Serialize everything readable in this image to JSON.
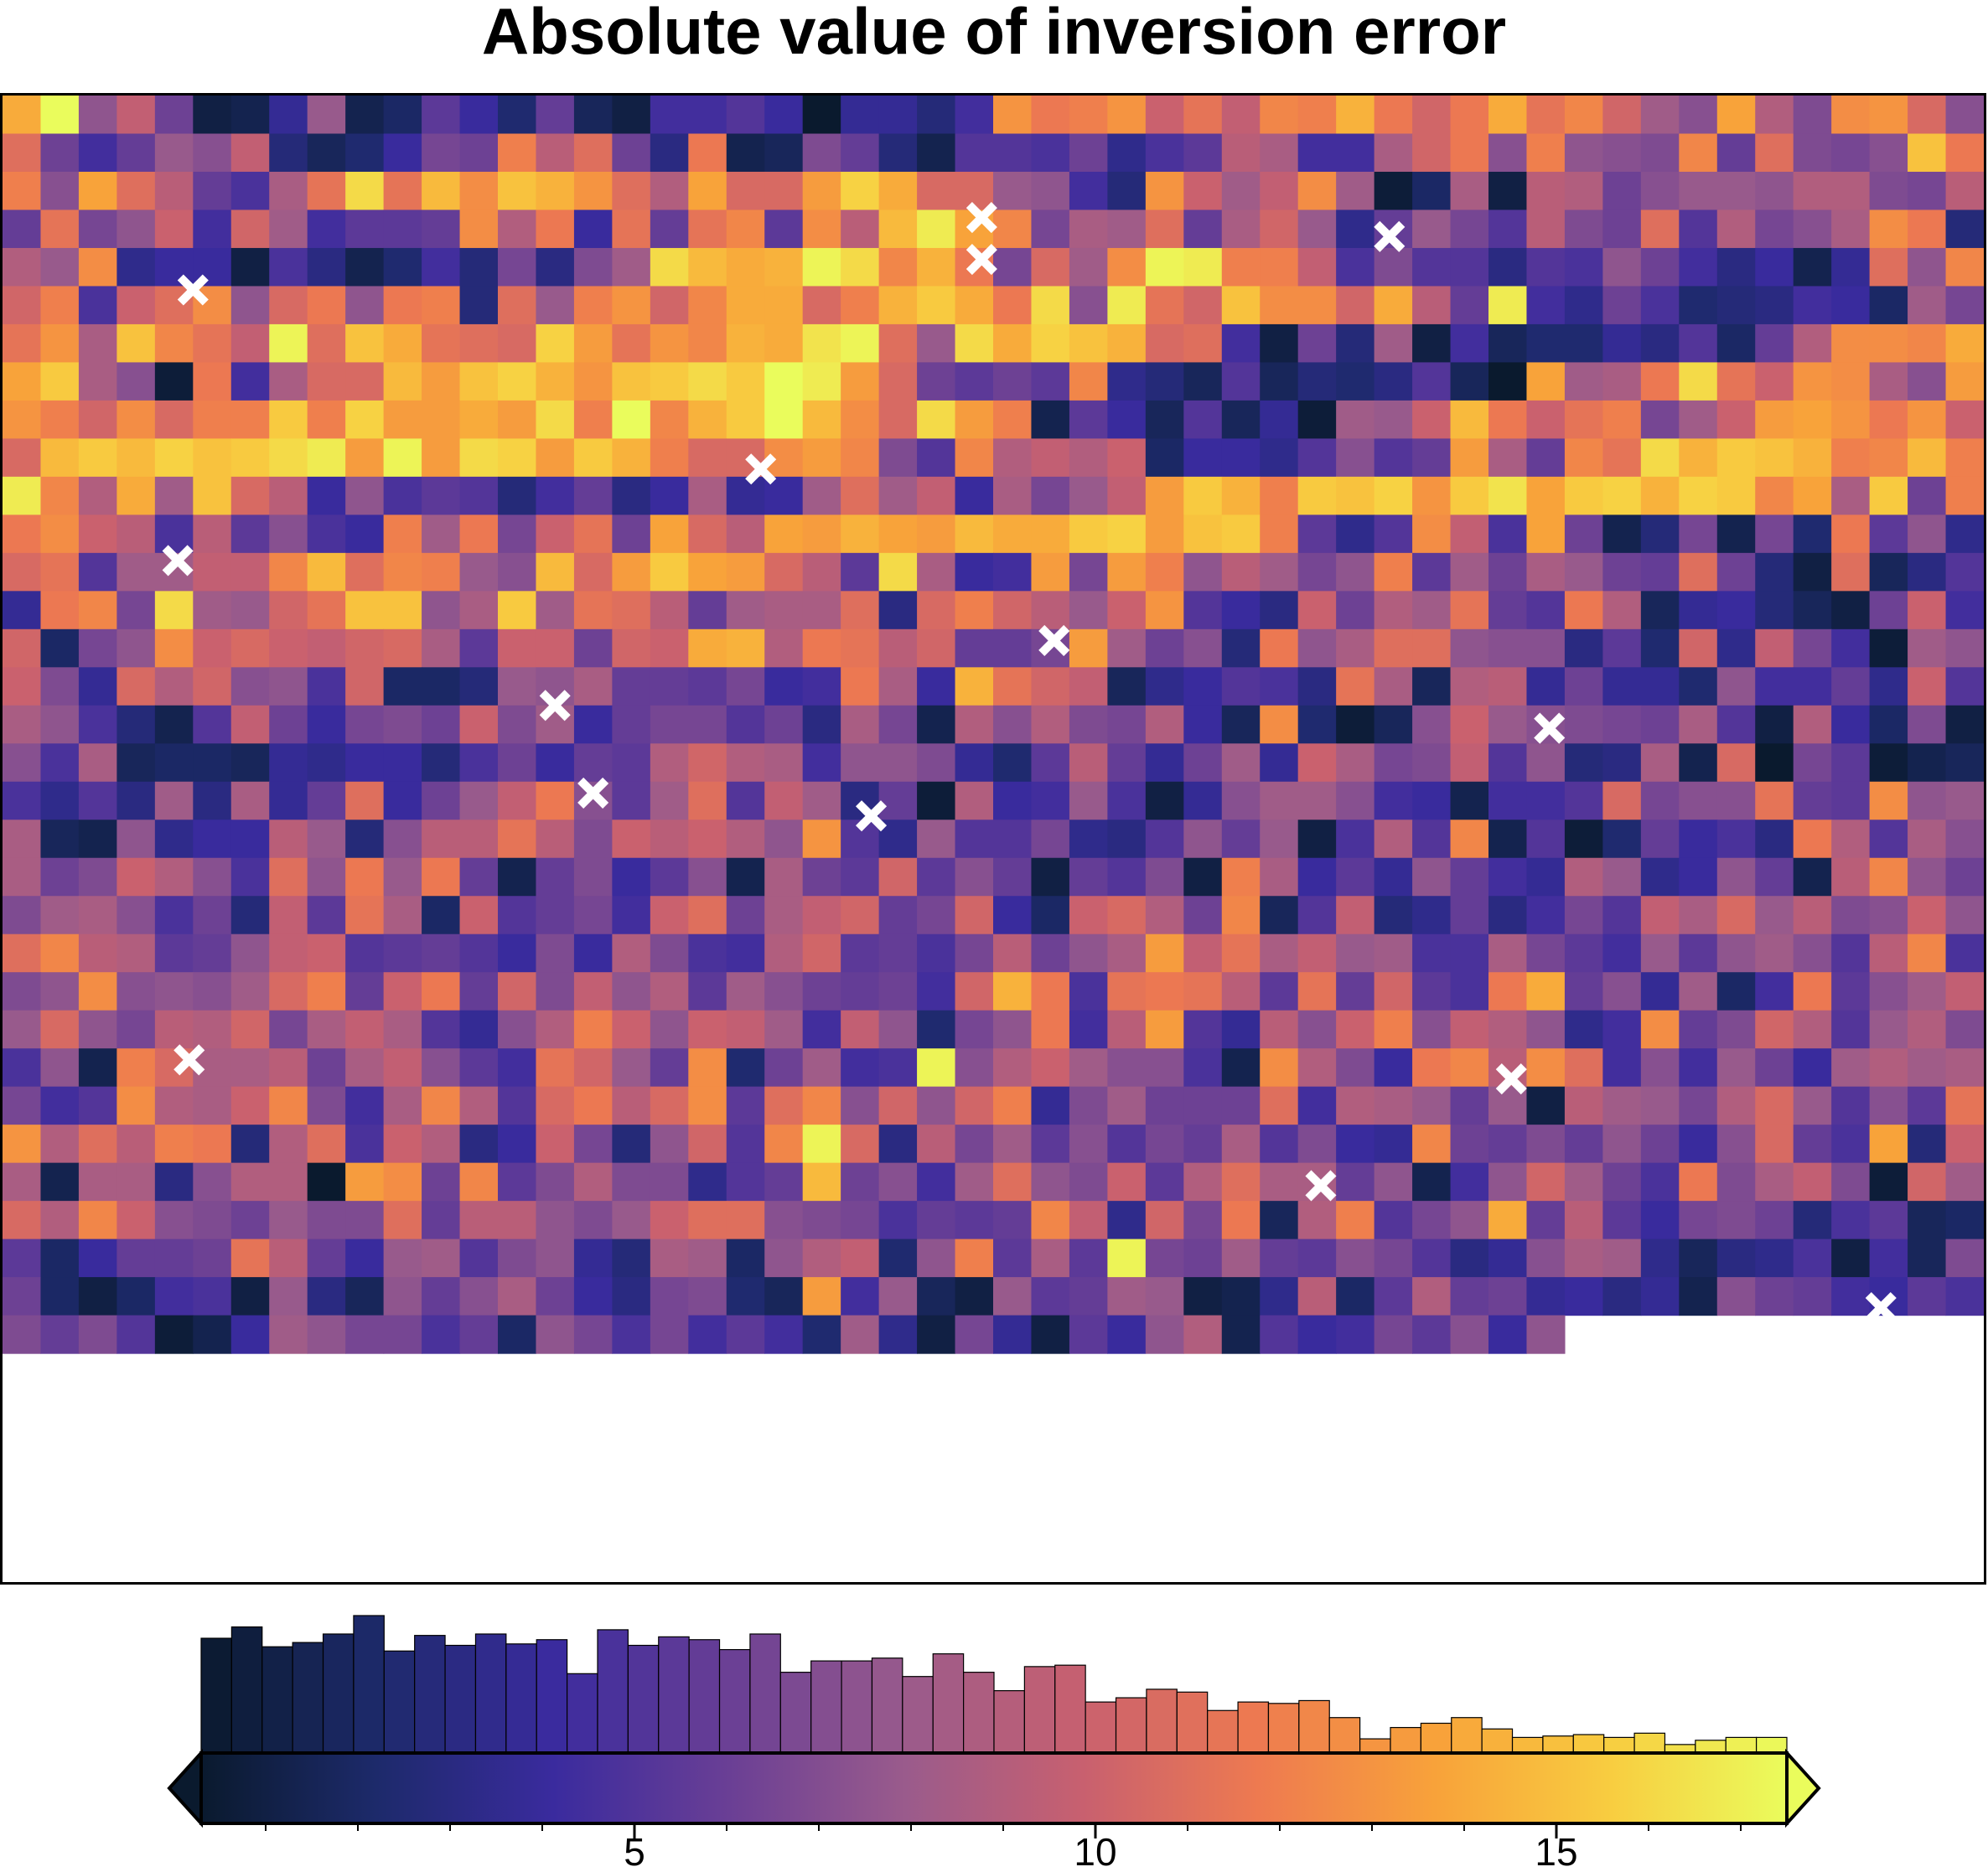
{
  "chart_data": {
    "type": "heatmap",
    "title": "Absolute value of inversion error",
    "colormap": "plasma-like (navy → purple → magenta → orange → yellow)",
    "color_stops": [
      "#0a1a2e",
      "#1d2a6b",
      "#3a2b9e",
      "#6a3f95",
      "#9a5b8c",
      "#c8606f",
      "#ee7a50",
      "#f8a23a",
      "#f8cd40",
      "#eafc5c"
    ],
    "grid": {
      "columns": 52,
      "rows": 39,
      "value_range": [
        0.3,
        17.5
      ]
    },
    "cells": "40 51 21 27 17 2 3 10 22 3 5 15 11 6 16 4 2 12 12 14 11 0 10 10 7 12 37 33 34 37 28 32 27 35 34 41 33 29 33 40 32 35 29 23 20 39 25 19 36 37 30 20 31 17 12 16 22 20 27 7 4 6 11 18 17 34 26 31 17 8 33 3 4 19 16 7 3 14 14 13 17 9 13 15 26 24 12 12 24 29 33 20 34 21 20 19 35 16 31 19 18 20 43 33 34 20 39 31 26 16 13 24 32 46 32 42 36 43 41 37 31 25 39 30 30 38 45 40 30 30 22 21 12 7 37 28 23 27 36 23 1 5 24 2 26 25 17 20 22 22 21 25 25 19 18 26 16 32 18 21 28 12 29 23 12 15 15 16 36 25 33 11 32 16 32 35 15 36 26 42 48 39 35 18 24 23 31 16 24 29 22 9 16 22 18 14 26 19 17 31 14 25 18 20 24 36 33 7 25 22 36 9 11 11 2 13 8 3 6 12 7 18 8 19 23 46 42 40 41 49 46 35 41 33 18 30 23 36 49 48 34 34 27 13 19 14 14 8 14 13 21 17 12 8 11 3 10 31 21 35 29 34 13 28 31 36 21 30 33 21 33 34 7 31 22 34 37 29 35 40 40 30 34 41 44 40 33 46 20 48 32 29 43 36 36 29 40 26 16 48 12 9 17 13 6 7 8 12 11 5 23 18 32 37 24 43 35 32 27 49 31 43 40 32 31 30 45 38 32 37 35 41 40 47 49 31 22 46 40 45 43 41 30 31 12 2 17 7 23 2 12 4 6 6 10 8 14 5 16 25 36 36 35 40 39 44 24 20 1 33 12 24 30 30 42 38 43 45 41 37 43 44 46 44 50 48 38 30 17 15 17 15 35 9 7 4 14 4 7 6 8 14 4 0 39 23 24 33 46 32 28 37 36 24 20 38 37 34 29 36 30 34 34 44 34 45 38 38 40 38 46 34 50 35 41 44 50 42 36 30 46 38 34 3 15 11 4 14 4 10 1 23 22 28 42 33 28 32 34 18 23 28 38 39 37 33 37 28 30 42 44 42 45 43 44 46 48 38 49 38 46 45 38 44 41 34 30 30 36 38 35 19 14 35 25 27 25 28 5 11 11 9 14 20 14 16 38 24 16 35 32 46 41 44 43 41 34 35 42 34 48 35 25 40 23 43 30 26 11 21 13 15 14 7 12 16 8 11 24 10 11 23 31 23 27 11 24 18 22 27 38 44 41 34 44 43 45 37 44 47 39 44 45 41 45 44 35 39 24 44 17 34 33 36 28 26 13 26 15 20 13 11 34 23 33 18 28 32 17 39 30 26 39 38 41 39 38 42 40 40 44 45 38 43 44 34 15 9 14 36 27 13 39 17 3 7 18 3 18 6 33 15 21 9 30 32 14 23 23 27 27 35 42 31 35 34 22 20 42 30 38 44 39 38 30 26 15 46 24 11 12 38 18 38 34 21 26 23 18 21 34 15 23 17 24 22 17 16 31 17 7 2 31 4 8 14 10 33 35 18 46 23 22 29 32 43 43 21 24 44 23 32 31 26 16 23 24 24 31 8 30 34 29 26 22 28 37 14 11 8 28 17 25 23 32 16 14 33 25 4 10 11 7 4 2 17 28 12 29 5 18 21 36 28 30 28 27 29 30 24 15 28 28 17 29 28 40 41 25 33 32 26 29 16 16 18 38 23 17 20 7 33 21 24 31 31 21 20 20 8 15 6 29 9 27 18 12 1 23 21 28 19 10 30 25 29 20 21 13 29 5 5 7 22 21 24 16 16 15 18 11 12 33 24 11 41 32 29 27 4 9 11 14 13 8 32 24 4 25 26 10 17 10 10 6 21 12 12 16 9 28 14 24 21 13 7 3 14 27 17 11 18 19 17 28 19 23 11 16 18 18 14 17 8 24 18 3 25 20 25 19 18 25 11 4 36 6 1 4 20 28 22 20 19 18 17 24 14 2 25 11 5 19 2 20 13 24 4 5 5 4 10 9 11 11 7 13 17 11 16 15 25 29 25 24 12 21 21 19 10 6 15 26 16 10 17 23 10 28 24 18 19 27 14 21 7 8 24 3 30 0 18 15 1 3 4 13 9 14 8 23 8 24 10 16 31 11 17 22 27 33 20 15 23 31 14 27 23 8 16 1 25 11 12 22 13 2 10 20 23 23 20 12 11 3 12 12 14 30 18 20 20 32 16 15 36 21 22 24 4 3 21 9 11 11 26 22 7 20 26 26 32 26 19 28 26 28 25 21 37 14 9 22 14 14 18 9 8 14 21 16 22 2 13 25 14 35 3 14 1 6 16 11 13 8 33 25 14 24 20 24 17 19 28 25 20 13 31 21 33 22 33 16 3 16 19 11 15 20 3 24 17 15 29 15 20 16 2 16 14 19 2 34 24 11 15 10 21 16 12 10 25 22 9 11 21 16 3 26 35 21 17 19 23 24 20 13 17 7 27 15 32 24 5 28 14 16 18 12 28 31 17 24 27 29 16 18 29 11 5 28 30 25 17 35 4 14 27 7 9 16 8 12 18 14 27 24 30 22 26 19 20 28 21 31 35 26 25 15 16 21 27 28 14 15 16 14 11 19 11 25 19 13 12 25 29 15 16 13 18 26 17 21 24 38 27 32 24 27 22 23 13 13 24 18 15 12 22 15 21 23 20 14 26 35 13 19 21 36 20 21 20 23 30 34 16 28 33 16 29 19 27 21 25 15 23 20 17 16 17 12 29 41 33 13 32 33 32 26 15 32 16 29 15 13 33 40 16 20 10 23 5 12 33 15 20 23 27 22 30 21 18 26 25 29 18 24 27 24 14 10 20 25 34 28 21 28 27 23 12 27 21 6 18 21 33 12 26 38 14 10 26 20 28 34 20 27 25 21 9 12 36 16 19 29 25 14 22 25 19 13 21 3 34 30 24 24 26 17 24 27 20 15 12 32 29 22 16 36 6 17 23 12 13 49 20 25 28 23 20 20 13 3 36 25 19 11 33 35 26 36 31 12 20 12 22 17 11 23 25 23 24 18 12 14 36 25 24 28 35 19 12 24 35 25 14 30 33 26 30 36 15 31 35 20 29 21 29 34 10 19 23 17 17 17 31 12 25 24 22 16 22 2 26 23 22 18 25 30 22 14 20 15 32 37 25 31 26 34 33 7 25 31 13 28 25 8 11 28 18 7 21 29 14 35 49 30 8 26 18 23 15 20 14 18 16 24 14 19 11 10 35 17 16 19 16 21 17 11 20 30 16 13 39 7 28 24 3 24 24 8 20 25 25 0 38 36 17 35 15 19 25 19 19 9 14 16 42 17 20 12 23 31 21 19 28 15 25 31 24 24 16 21 3 12 21 29 23 17 13 33 19 24 27 19 1 29 23 30 25 35 28 20 19 17 22 19 19 31 16 26 26 21 19 22 28 31 31 20 19 18 13 16 15 16 35 27 9 29 18 33 4 25 34 14 18 21 40 16 26 15 11 18 19 17 7 13 15 4 5 15 5 11 16 16 17 32 26 16 11 22 23 14 19 21 10 7 24 23 5 21 25 27 6 21 34 15 24 15 49 18 17 23 16 15 20 18 14 8 10 20 24 23 9 4 8 9 13 2 12 4 19 17 5 2 5 12 13 2 22 8 4 21 16 20 24 17 11 8 18 19 6 4 38 12 22 4 2 22 15 16 23 22 2 3 9 26 5 15 25 16 17 10 11 8 10 3 20 17 16 12 11 15 13 19 16 19 14 1 3 11 23 21 18 18 13 16 5 21 18 13 18 12 15 12 6 23 9 2 18 10 2 15 11 21 25 3 14 11 12 18 15 20 11 21",
    "markers": [
      {
        "x": 5.0,
        "y": 5.1
      },
      {
        "x": 25.7,
        "y": 3.2
      },
      {
        "x": 25.7,
        "y": 4.3
      },
      {
        "x": 36.4,
        "y": 3.7
      },
      {
        "x": 19.9,
        "y": 9.8
      },
      {
        "x": 4.6,
        "y": 12.2
      },
      {
        "x": 27.6,
        "y": 14.3
      },
      {
        "x": 14.5,
        "y": 16.0
      },
      {
        "x": 40.6,
        "y": 16.6
      },
      {
        "x": 15.5,
        "y": 18.3
      },
      {
        "x": 22.8,
        "y": 18.9
      },
      {
        "x": 4.9,
        "y": 25.3
      },
      {
        "x": 39.6,
        "y": 25.8
      },
      {
        "x": 34.6,
        "y": 28.6
      },
      {
        "x": 49.3,
        "y": 31.8
      }
    ],
    "colorbar": {
      "range": [
        0.3,
        17.5
      ],
      "major_ticks": [
        5,
        10,
        15
      ],
      "tick_labels": [
        "5",
        "10",
        "15"
      ],
      "minor_ticks": [
        1,
        2,
        3,
        4,
        6,
        7,
        8,
        9,
        11,
        12,
        13,
        14,
        16,
        17
      ],
      "extend": "both",
      "histogram_counts": [
        81,
        89,
        75,
        78,
        84,
        97,
        72,
        83,
        76,
        84,
        77,
        80,
        56,
        87,
        76,
        82,
        80,
        73,
        84,
        57,
        65,
        65,
        67,
        54,
        70,
        57,
        44,
        61,
        62,
        36,
        39,
        45,
        43,
        30,
        36,
        35,
        37,
        25,
        10,
        18,
        21,
        25,
        17,
        11,
        12,
        13,
        11,
        14,
        6,
        9,
        11,
        11
      ]
    }
  }
}
